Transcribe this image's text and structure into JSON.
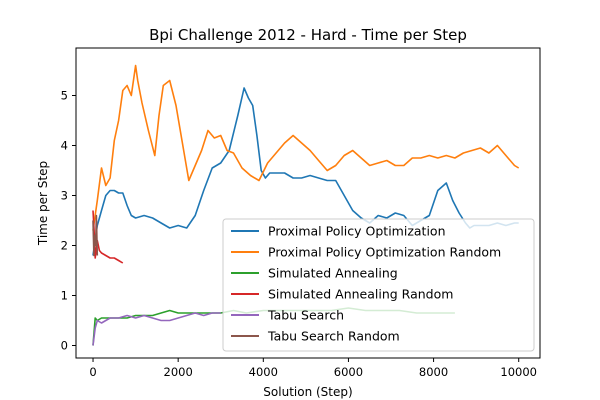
{
  "chart_data": {
    "type": "line",
    "title": "Bpi Challenge 2012 - Hard - Time per Step",
    "xlabel": "Solution (Step)",
    "ylabel": "Time per Step",
    "xlim": [
      -400,
      10500
    ],
    "ylim": [
      -0.25,
      5.95
    ],
    "xticks": [
      0,
      2000,
      4000,
      6000,
      8000,
      10000
    ],
    "yticks": [
      0,
      1,
      2,
      3,
      4,
      5
    ],
    "grid": false,
    "legend_position": "lower-right",
    "series": [
      {
        "name": "Proximal Policy Optimization",
        "color": "#1f77b4",
        "x": [
          0,
          100,
          200,
          300,
          400,
          500,
          600,
          700,
          800,
          900,
          1000,
          1200,
          1400,
          1600,
          1800,
          2000,
          2200,
          2400,
          2600,
          2800,
          3000,
          3200,
          3400,
          3550,
          3650,
          3750,
          3850,
          3950,
          4050,
          4150,
          4300,
          4500,
          4700,
          4900,
          5100,
          5300,
          5500,
          5700,
          5900,
          6100,
          6300,
          6500,
          6700,
          6900,
          7100,
          7300,
          7500,
          7700,
          7900,
          8100,
          8300,
          8450,
          8600,
          8750,
          8850,
          8950,
          9100,
          9300,
          9500,
          9700,
          9900,
          10000
        ],
        "y": [
          1.8,
          2.4,
          2.7,
          3.0,
          3.1,
          3.1,
          3.05,
          3.05,
          2.8,
          2.6,
          2.55,
          2.6,
          2.55,
          2.45,
          2.35,
          2.4,
          2.35,
          2.6,
          3.1,
          3.55,
          3.65,
          3.9,
          4.6,
          5.15,
          4.95,
          4.8,
          4.2,
          3.5,
          3.35,
          3.45,
          3.45,
          3.45,
          3.35,
          3.35,
          3.4,
          3.35,
          3.3,
          3.3,
          3.0,
          2.7,
          2.55,
          2.45,
          2.6,
          2.55,
          2.65,
          2.6,
          2.4,
          2.5,
          2.6,
          3.1,
          3.25,
          2.9,
          2.65,
          2.45,
          2.35,
          2.4,
          2.4,
          2.4,
          2.45,
          2.4,
          2.45,
          2.45
        ]
      },
      {
        "name": "Proximal Policy Optimization Random",
        "color": "#ff7f0e",
        "x": [
          0,
          100,
          200,
          300,
          400,
          500,
          600,
          700,
          800,
          900,
          1000,
          1050,
          1150,
          1300,
          1450,
          1550,
          1650,
          1800,
          1950,
          2100,
          2250,
          2400,
          2550,
          2700,
          2850,
          3000,
          3150,
          3300,
          3500,
          3700,
          3900,
          4100,
          4300,
          4500,
          4700,
          4900,
          5100,
          5300,
          5500,
          5700,
          5900,
          6100,
          6300,
          6500,
          6700,
          6900,
          7100,
          7300,
          7500,
          7700,
          7900,
          8100,
          8300,
          8500,
          8700,
          8900,
          9100,
          9300,
          9500,
          9700,
          9900,
          10000
        ],
        "y": [
          2.3,
          2.9,
          3.55,
          3.2,
          3.35,
          4.1,
          4.5,
          5.1,
          5.2,
          5.0,
          5.6,
          5.3,
          4.85,
          4.3,
          3.8,
          4.6,
          5.2,
          5.3,
          4.8,
          4.05,
          3.3,
          3.6,
          3.9,
          4.3,
          4.15,
          4.2,
          3.9,
          3.85,
          3.55,
          3.4,
          3.3,
          3.65,
          3.85,
          4.05,
          4.2,
          4.05,
          3.9,
          3.7,
          3.5,
          3.6,
          3.8,
          3.9,
          3.75,
          3.6,
          3.65,
          3.7,
          3.6,
          3.6,
          3.75,
          3.75,
          3.8,
          3.75,
          3.8,
          3.75,
          3.85,
          3.9,
          3.95,
          3.85,
          4.0,
          3.8,
          3.6,
          3.55
        ]
      },
      {
        "name": "Simulated Annealing",
        "color": "#2ca02c",
        "x": [
          0,
          50,
          100,
          200,
          300,
          400,
          600,
          800,
          1000,
          1200,
          1400,
          1600,
          1800,
          2000,
          2200,
          2400,
          2600,
          2800,
          3000,
          3300,
          3600,
          4000,
          4400,
          4800,
          5200,
          5600,
          6000,
          6400,
          6800,
          7200,
          7600,
          8000,
          8500
        ],
        "y": [
          0.0,
          0.55,
          0.5,
          0.55,
          0.55,
          0.55,
          0.55,
          0.55,
          0.6,
          0.6,
          0.6,
          0.65,
          0.7,
          0.65,
          0.65,
          0.65,
          0.65,
          0.65,
          0.65,
          0.7,
          0.65,
          0.7,
          0.7,
          0.7,
          0.7,
          0.7,
          0.75,
          0.7,
          0.7,
          0.7,
          0.65,
          0.65,
          0.65
        ]
      },
      {
        "name": "Simulated Annealing Random",
        "color": "#d62728",
        "x": [
          0,
          25,
          50,
          100,
          150,
          200,
          300,
          400,
          500,
          600,
          700
        ],
        "y": [
          2.7,
          2.3,
          1.75,
          2.1,
          1.9,
          1.85,
          1.8,
          1.75,
          1.75,
          1.7,
          1.65
        ]
      },
      {
        "name": "Tabu Search",
        "color": "#9467bd",
        "x": [
          0,
          50,
          100,
          200,
          400,
          600,
          800,
          1000,
          1200,
          1400,
          1600,
          1800,
          2000,
          2200,
          2400,
          2600,
          2800,
          3000
        ],
        "y": [
          0.0,
          0.35,
          0.5,
          0.45,
          0.55,
          0.55,
          0.6,
          0.55,
          0.6,
          0.55,
          0.5,
          0.5,
          0.55,
          0.6,
          0.65,
          0.6,
          0.65,
          0.65
        ]
      },
      {
        "name": "Tabu Search Random",
        "color": "#8c564b",
        "x": [
          0,
          20,
          40,
          60,
          80,
          100
        ],
        "y": [
          2.5,
          1.8,
          2.2,
          2.0,
          2.6,
          1.8
        ]
      }
    ]
  }
}
